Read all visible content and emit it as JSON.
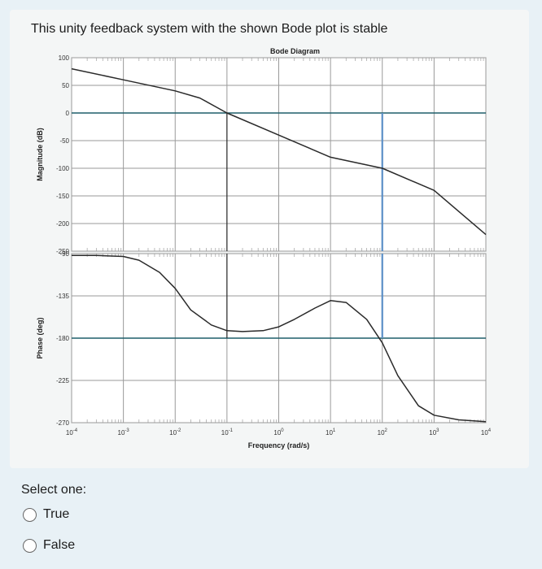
{
  "question": {
    "text": "This unity feedback system with the shown Bode plot is stable"
  },
  "chart_data": [
    {
      "type": "line",
      "title": "Bode Diagram",
      "panel": "magnitude",
      "ylabel": "Magnitude (dB)",
      "xscale": "log",
      "xlim": [
        0.0001,
        10000
      ],
      "ylim": [
        -250,
        100
      ],
      "yticks": [
        "100",
        "50",
        "0",
        "-50",
        "-100",
        "-150",
        "-200",
        "-250"
      ],
      "grid": true,
      "series": [
        {
          "x": [
            0.0001,
            0.001,
            0.01,
            0.03,
            0.1,
            1,
            10,
            100,
            1000,
            10000
          ],
          "y": [
            80,
            60,
            40,
            27,
            0,
            -40,
            -80,
            -100,
            -140,
            -220
          ]
        }
      ],
      "marker_lines": [
        {
          "type": "vertical",
          "x": 0.1
        },
        {
          "type": "vertical",
          "x": 100
        }
      ]
    },
    {
      "type": "line",
      "panel": "phase",
      "ylabel": "Phase (deg)",
      "xlabel": "Frequency (rad/s)",
      "xscale": "log",
      "xlim": [
        0.0001,
        10000
      ],
      "ylim": [
        -270,
        -90
      ],
      "yticks": [
        "-90",
        "-135",
        "-180",
        "-225",
        "-270"
      ],
      "xticks": [
        "10-4",
        "10-3",
        "10-2",
        "10-1",
        "100",
        "101",
        "102",
        "103",
        "104"
      ],
      "grid": true,
      "series": [
        {
          "x": [
            0.0001,
            0.0003,
            0.001,
            0.002,
            0.005,
            0.01,
            0.02,
            0.05,
            0.1,
            0.2,
            0.5,
            1,
            2,
            5,
            10,
            20,
            50,
            100,
            200,
            500,
            1000,
            3000,
            10000
          ],
          "y": [
            -92,
            -92,
            -93,
            -97,
            -110,
            -127,
            -150,
            -166,
            -172,
            -173,
            -172,
            -168,
            -160,
            -148,
            -140,
            -142,
            -160,
            -185,
            -220,
            -252,
            -262,
            -267,
            -269
          ]
        }
      ],
      "marker_lines": [
        {
          "type": "vertical",
          "x": 0.1
        },
        {
          "type": "vertical",
          "x": 100
        }
      ]
    }
  ],
  "answer": {
    "prompt": "Select one:",
    "options": [
      {
        "label": "True"
      },
      {
        "label": "False"
      }
    ]
  }
}
